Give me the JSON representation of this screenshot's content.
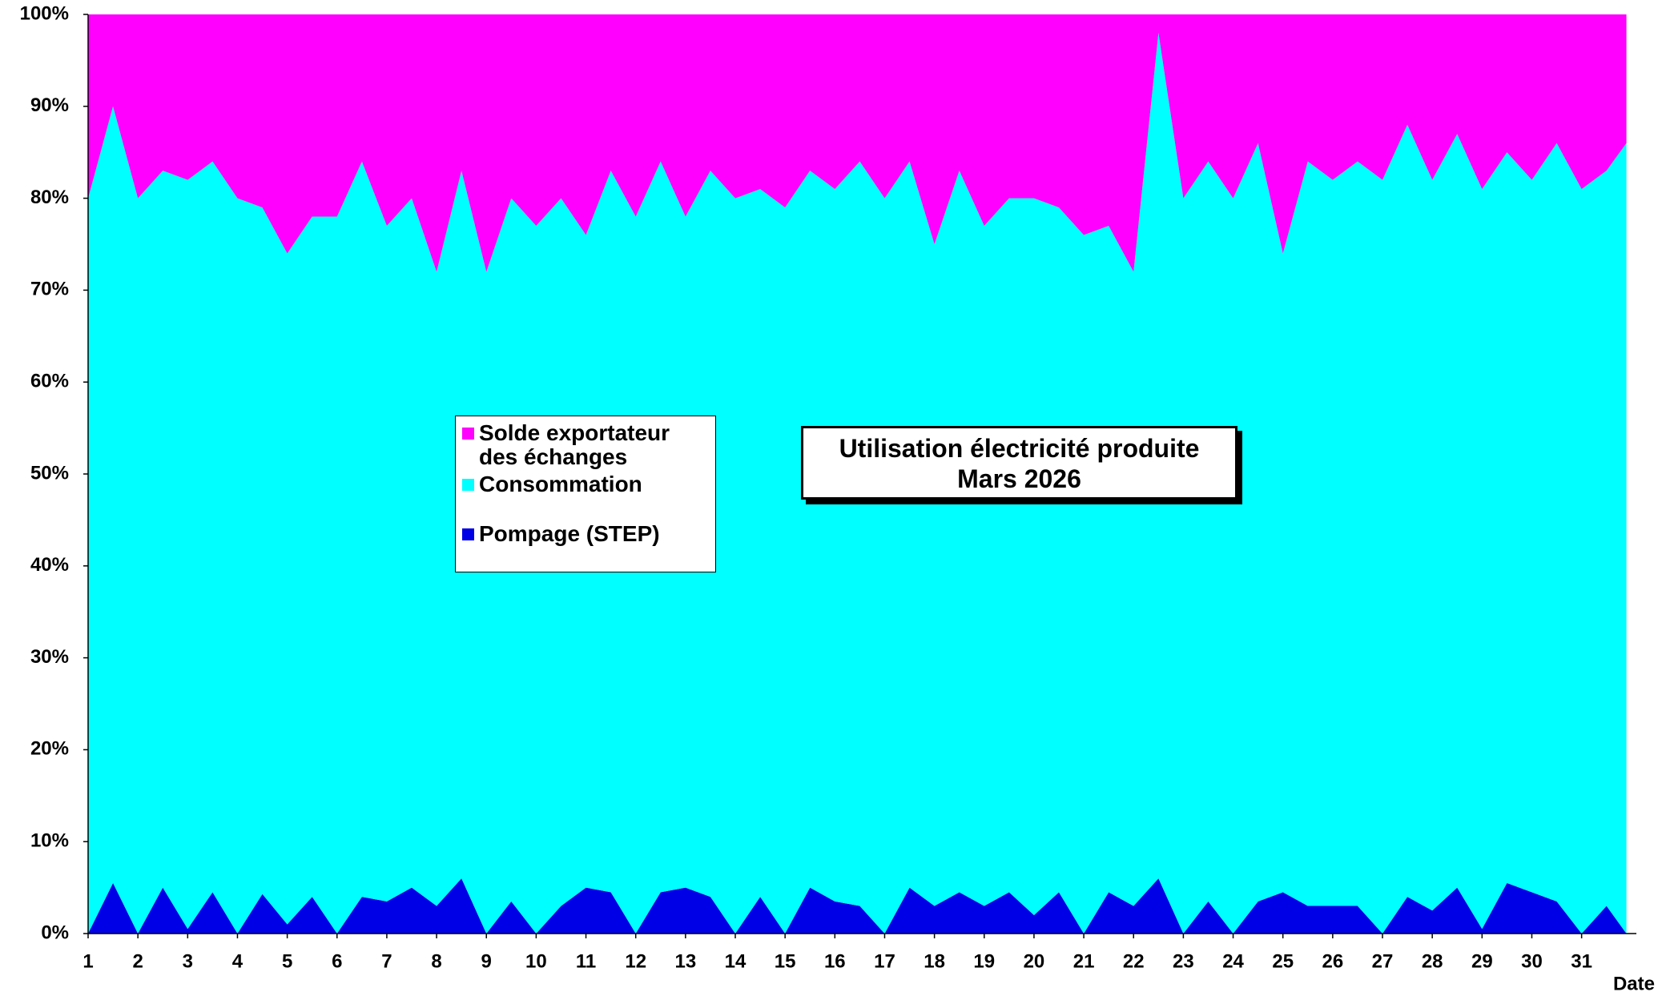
{
  "chart_data": {
    "type": "stacked_area",
    "title": [
      "Utilisation électricité produite",
      "Mars 2026"
    ],
    "x_label": "Date",
    "x": [
      1,
      1.5,
      2,
      2.5,
      3,
      3.5,
      4,
      4.5,
      5,
      5.5,
      6,
      6.5,
      7,
      7.5,
      8,
      8.5,
      9,
      9.5,
      10,
      10.5,
      11,
      11.5,
      12,
      12.5,
      13,
      13.5,
      14,
      14.5,
      15,
      15.5,
      16,
      16.5,
      17,
      17.5,
      18,
      18.5,
      19,
      19.5,
      20,
      20.5,
      21,
      21.5,
      22,
      22.5,
      23,
      23.5,
      24,
      24.5,
      25,
      25.5,
      26,
      26.5,
      27,
      27.5,
      28,
      28.5,
      29,
      29.5,
      30,
      30.5,
      31,
      31.5,
      31.9
    ],
    "series": [
      {
        "name": "Solde exportateur des échanges",
        "color": "#ff00ff",
        "values": [
          20,
          10,
          20,
          17,
          18,
          16,
          20,
          21,
          26,
          22,
          22,
          16,
          23,
          20,
          28,
          17,
          28,
          20,
          23,
          20,
          24,
          17,
          22,
          16,
          22,
          17,
          20,
          19,
          21,
          17,
          19,
          16,
          20,
          16,
          25,
          17,
          23,
          20,
          20,
          21,
          24,
          23,
          28,
          2,
          20,
          16,
          20,
          14,
          26,
          16,
          18,
          16,
          18,
          12,
          18,
          13,
          19,
          15,
          18,
          14,
          19,
          17,
          14
        ]
      },
      {
        "name": "Consommation",
        "color": "#00ffff",
        "values": [
          80,
          84.5,
          80,
          78,
          81.5,
          79.5,
          80,
          74.7,
          73,
          74,
          78,
          80,
          73.5,
          75,
          69,
          77,
          72,
          76.5,
          77,
          77,
          71,
          78.5,
          78,
          79.5,
          73,
          79,
          80,
          77,
          79,
          78,
          77.5,
          81,
          80,
          79,
          72,
          78.5,
          74,
          75.5,
          78,
          74.5,
          76,
          72.5,
          69,
          92,
          80,
          80.5,
          80,
          82.5,
          69.5,
          81,
          79,
          81,
          82,
          84,
          79.5,
          82,
          80.5,
          79.5,
          77.5,
          82.5,
          81,
          80,
          86
        ]
      },
      {
        "name": "Pompage (STEP)",
        "color": "#0000e6",
        "values": [
          0,
          5.5,
          0,
          5,
          0.5,
          4.5,
          0,
          4.3,
          1,
          4,
          0,
          4,
          3.5,
          5,
          3,
          6,
          0,
          3.5,
          0,
          3,
          5,
          4.5,
          0,
          4.5,
          5,
          4,
          0,
          4,
          0,
          5,
          3.5,
          3,
          0,
          5,
          3,
          4.5,
          3,
          4.5,
          2,
          4.5,
          0,
          4.5,
          3,
          6,
          0,
          3.5,
          0,
          3.5,
          4.5,
          3,
          3,
          3,
          0,
          4,
          2.5,
          5,
          0.5,
          5.5,
          4.5,
          3.5,
          0,
          3,
          0
        ]
      }
    ],
    "xlim": [
      1,
      32.1
    ],
    "xticks": [
      1,
      2,
      3,
      4,
      5,
      6,
      7,
      8,
      9,
      10,
      11,
      12,
      13,
      14,
      15,
      16,
      17,
      18,
      19,
      20,
      21,
      22,
      23,
      24,
      25,
      26,
      27,
      28,
      29,
      30,
      31
    ],
    "ylim": [
      0,
      100
    ],
    "yticks": [
      {
        "value": 0,
        "label": "0%"
      },
      {
        "value": 10,
        "label": "10%"
      },
      {
        "value": 20,
        "label": "20%"
      },
      {
        "value": 30,
        "label": "30%"
      },
      {
        "value": 40,
        "label": "40%"
      },
      {
        "value": 50,
        "label": "50%"
      },
      {
        "value": 60,
        "label": "60%"
      },
      {
        "value": 70,
        "label": "70%"
      },
      {
        "value": 80,
        "label": "80%"
      },
      {
        "value": 90,
        "label": "90%"
      },
      {
        "value": 100,
        "label": "100%"
      }
    ]
  }
}
